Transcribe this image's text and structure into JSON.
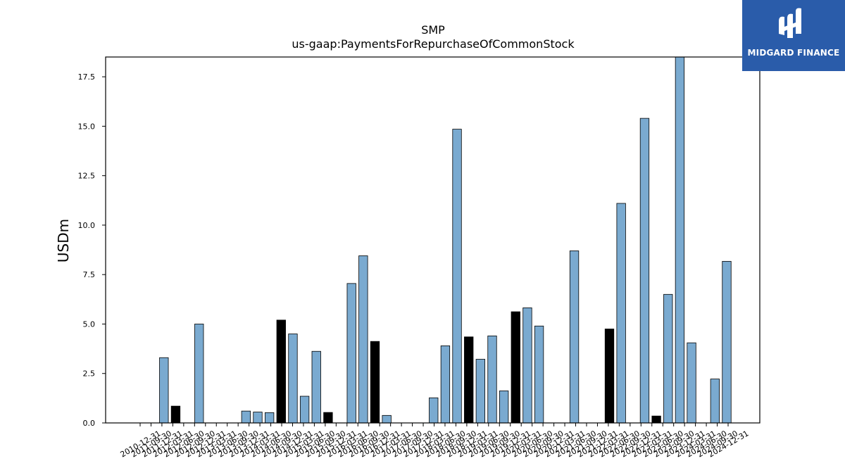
{
  "brand": {
    "name": "MIDGARD FINANCE",
    "bg_color": "#2a5caa"
  },
  "chart_data": {
    "type": "bar",
    "title": "SMP",
    "subtitle": "us-gaap:PaymentsForRepurchaseOfCommonStock",
    "ylabel": "USDm",
    "xlabel": "",
    "ylim": [
      0,
      18.5
    ],
    "yticks": [
      "0.0",
      "2.5",
      "5.0",
      "7.5",
      "10.0",
      "12.5",
      "15.0",
      "17.5"
    ],
    "colors": {
      "default": "#7aaad0",
      "highlight": "#000000"
    },
    "categories": [
      "2010-12-31",
      "2011-03-31",
      "2011-06-30",
      "2011-09-30",
      "2011-12-31",
      "2012-03-31",
      "2012-06-30",
      "2012-09-30",
      "2012-12-31",
      "2013-03-31",
      "2013-06-30",
      "2013-09-30",
      "2013-12-31",
      "2014-03-31",
      "2014-06-30",
      "2014-09-30",
      "2014-12-31",
      "2015-03-31",
      "2015-06-30",
      "2015-09-30",
      "2015-12-31",
      "2016-03-31",
      "2016-06-30",
      "2016-09-30",
      "2016-12-31",
      "2017-03-31",
      "2017-06-30",
      "2017-09-30",
      "2017-12-31",
      "2018-03-31",
      "2018-06-30",
      "2018-09-30",
      "2018-12-31",
      "2019-03-31",
      "2019-06-30",
      "2019-09-30",
      "2019-12-31",
      "2020-03-31",
      "2020-06-30",
      "2020-09-30",
      "2020-12-31",
      "2021-03-31",
      "2021-06-30",
      "2021-09-30",
      "2021-12-31",
      "2022-03-31",
      "2022-06-30",
      "2022-09-30",
      "2022-12-31",
      "2023-03-31",
      "2023-06-30",
      "2023-09-30",
      "2023-12-31",
      "2024-03-31",
      "2024-06-30",
      "2024-09-30",
      "2024-12-31"
    ],
    "x_tick_labels": [
      "2010-12-31",
      "2011-09-30",
      "2011-12-31",
      "2012-03-31",
      "2012-06-30",
      "2012-09-30",
      "2012-12-31",
      "2013-03-31",
      "2013-06-30",
      "2013-09-30",
      "2013-12-31",
      "2014-03-31",
      "2014-06-30",
      "2014-09-30",
      "2014-12-31",
      "2015-03-31",
      "2015-06-30",
      "2015-09-30",
      "2015-12-31",
      "2016-03-31",
      "2016-06-30",
      "2016-09-30",
      "2016-12-31",
      "2017-03-31",
      "2017-06-30",
      "2017-09-30",
      "2017-12-31",
      "2018-03-31",
      "2018-06-30",
      "2018-09-30",
      "2018-12-31",
      "2019-03-31",
      "2019-06-30",
      "2019-09-30",
      "2019-12-31",
      "2020-03-31",
      "2020-06-30",
      "2020-09-30",
      "2020-12-31",
      "2021-03-31",
      "2021-06-30",
      "2021-09-30",
      "2021-12-31",
      "2022-03-31",
      "2022-06-30",
      "2022-09-30",
      "2022-12-31",
      "2023-03-31",
      "2023-06-30",
      "2023-09-30",
      "2023-12-31",
      "2024-03-31",
      "2024-06-30",
      "2024-09-30",
      "2024-12-31"
    ],
    "values": [
      0,
      0,
      3.3,
      0.85,
      0,
      5.0,
      0,
      0,
      0,
      0.6,
      0.55,
      0.52,
      5.2,
      4.5,
      1.35,
      3.62,
      0.53,
      0,
      7.05,
      8.45,
      4.12,
      0.38,
      0,
      0,
      0,
      1.27,
      3.9,
      14.85,
      4.35,
      3.22,
      4.4,
      1.62,
      5.62,
      5.82,
      4.9,
      0,
      0,
      8.7,
      0,
      0,
      4.75,
      11.1,
      0,
      15.4,
      0.35,
      6.5,
      18.5,
      4.05,
      0,
      2.22,
      8.17,
      0,
      0,
      0,
      0,
      0,
      0
    ],
    "highlight": [
      false,
      false,
      false,
      true,
      false,
      false,
      false,
      false,
      false,
      false,
      false,
      false,
      true,
      false,
      false,
      false,
      true,
      false,
      false,
      false,
      true,
      false,
      false,
      false,
      false,
      false,
      false,
      false,
      true,
      false,
      false,
      false,
      true,
      false,
      false,
      false,
      false,
      false,
      false,
      false,
      true,
      false,
      false,
      false,
      true,
      false,
      false,
      false,
      false,
      false,
      false,
      false,
      false,
      false,
      false,
      false,
      false
    ]
  }
}
